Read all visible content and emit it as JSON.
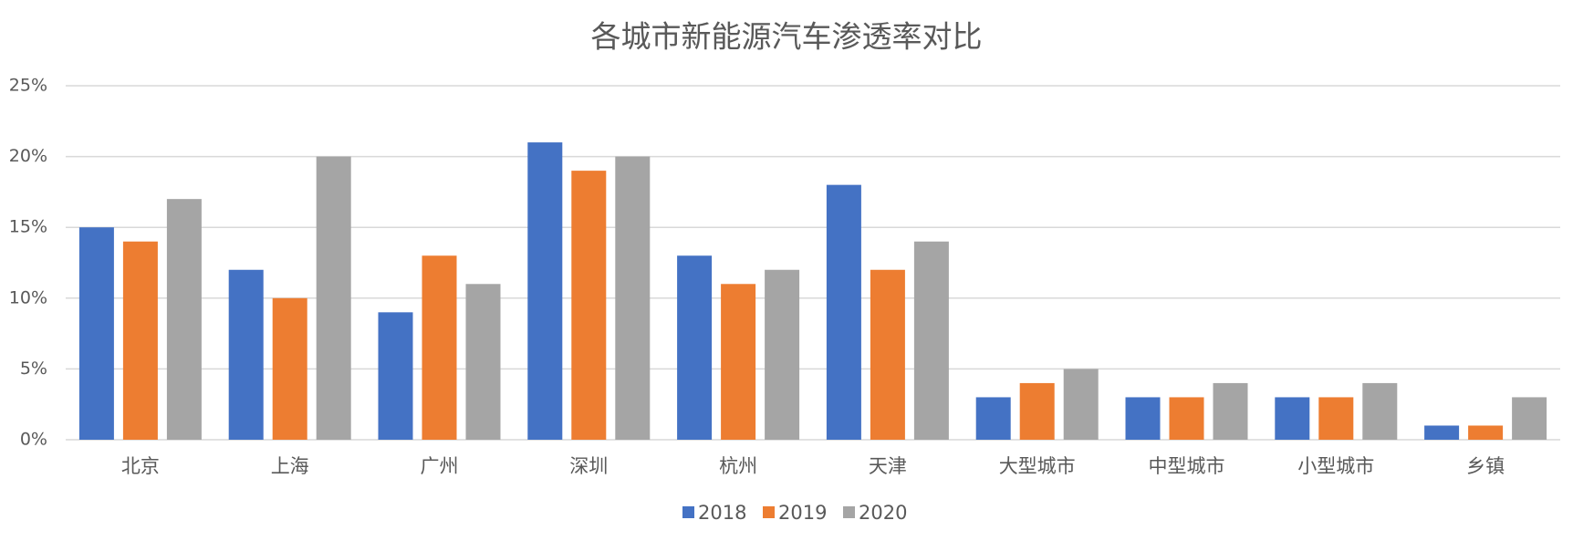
{
  "chart_data": {
    "type": "bar",
    "title": "各城市新能源汽车渗透率对比",
    "categories": [
      "北京",
      "上海",
      "广州",
      "深圳",
      "杭州",
      "天津",
      "大型城市",
      "中型城市",
      "小型城市",
      "乡镇"
    ],
    "series": [
      {
        "name": "2018",
        "color": "#4472c4",
        "values": [
          15,
          12,
          9,
          21,
          13,
          18,
          3,
          3,
          3,
          1
        ]
      },
      {
        "name": "2019",
        "color": "#ed7d31",
        "values": [
          14,
          10,
          13,
          19,
          11,
          12,
          4,
          3,
          3,
          1
        ]
      },
      {
        "name": "2020",
        "color": "#a5a5a5",
        "values": [
          17,
          20,
          11,
          20,
          12,
          14,
          5,
          4,
          4,
          3
        ]
      }
    ],
    "ylim": [
      0,
      25
    ],
    "yticks": [
      {
        "value": 0,
        "label": "0%"
      },
      {
        "value": 5,
        "label": "5%"
      },
      {
        "value": 10,
        "label": "10%"
      },
      {
        "value": 15,
        "label": "15%"
      },
      {
        "value": 20,
        "label": "20%"
      },
      {
        "value": 25,
        "label": "25%"
      }
    ],
    "grid": true,
    "legend": "bottom"
  }
}
